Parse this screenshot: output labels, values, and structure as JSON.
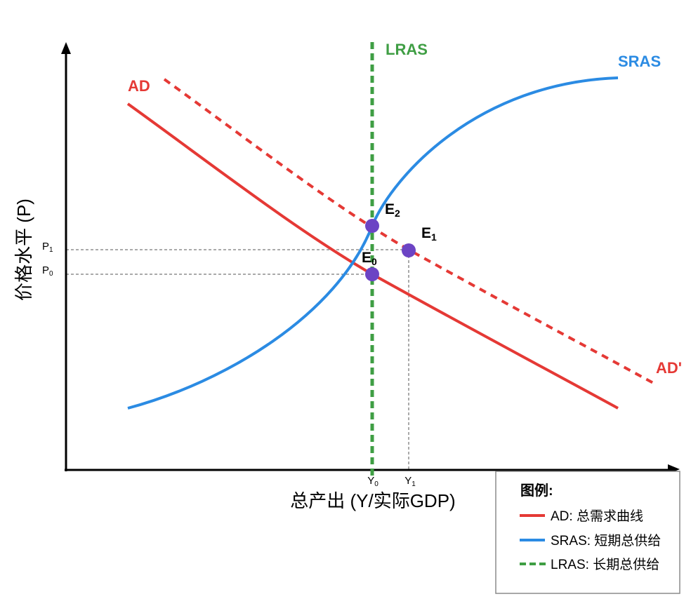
{
  "axes": {
    "y_label": "价格水平 (P)",
    "x_label": "总产出 (Y/实际GDP)"
  },
  "curves": {
    "ad": {
      "label": "AD",
      "color": "#e53935"
    },
    "ad_shifted": {
      "label": "AD'",
      "color": "#e53935"
    },
    "sras": {
      "label": "SRAS",
      "color": "#2b8be3"
    },
    "lras": {
      "label": "LRAS",
      "color": "#3f9e44"
    }
  },
  "equilibria": {
    "color": "#6c44c4",
    "e2": {
      "letter": "E",
      "sub": "2"
    },
    "e1": {
      "letter": "E",
      "sub": "1"
    },
    "e0": {
      "letter": "E",
      "sub": "0"
    }
  },
  "price_levels": {
    "p1": {
      "letter": "P",
      "sub": "1"
    },
    "p0": {
      "letter": "P",
      "sub": "0"
    }
  },
  "output_levels": {
    "y0": {
      "letter": "Y",
      "sub": "0"
    },
    "y1": {
      "letter": "Y",
      "sub": "1"
    }
  },
  "legend": {
    "title": "图例:",
    "items": [
      {
        "label": "AD: 总需求曲线",
        "color": "#e53935"
      },
      {
        "label": "SRAS: 短期总供给",
        "color": "#2b8be3"
      },
      {
        "label": "LRAS: 长期总供给",
        "color": "#3f9e44"
      }
    ]
  }
}
